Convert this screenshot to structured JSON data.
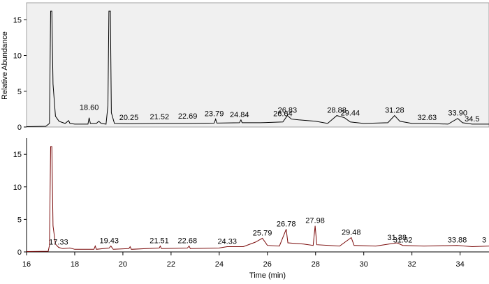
{
  "chart_data": [
    {
      "type": "line",
      "panel": "top",
      "ylabel": "Relative Abundance",
      "xlim": [
        16,
        35.2
      ],
      "ylim": [
        0,
        16.2
      ],
      "yticks": [
        0,
        5,
        10,
        15
      ],
      "background": "#f0f0f0",
      "line_color": "#000000",
      "baseline": [
        [
          16.0,
          0.05
        ],
        [
          16.8,
          0.1
        ],
        [
          16.95,
          0.5
        ],
        [
          17.0,
          16.2
        ],
        [
          17.05,
          16.2
        ],
        [
          17.1,
          6
        ],
        [
          17.2,
          1.5
        ],
        [
          17.35,
          0.8
        ],
        [
          17.6,
          0.5
        ],
        [
          17.75,
          0.9
        ],
        [
          17.8,
          0.5
        ],
        [
          18.0,
          0.4
        ],
        [
          18.55,
          0.4
        ],
        [
          18.6,
          1.3
        ],
        [
          18.65,
          0.5
        ],
        [
          18.9,
          0.5
        ],
        [
          19.0,
          0.8
        ],
        [
          19.1,
          0.5
        ],
        [
          19.3,
          0.4
        ],
        [
          19.38,
          3
        ],
        [
          19.42,
          16.2
        ],
        [
          19.48,
          16.2
        ],
        [
          19.52,
          2
        ],
        [
          19.65,
          0.5
        ],
        [
          20.25,
          0.45
        ],
        [
          21.52,
          0.5
        ],
        [
          22.69,
          0.5
        ],
        [
          23.79,
          0.55
        ],
        [
          23.85,
          1.1
        ],
        [
          23.9,
          0.55
        ],
        [
          24.84,
          0.6
        ],
        [
          24.9,
          1.0
        ],
        [
          24.95,
          0.6
        ],
        [
          25.7,
          0.6
        ],
        [
          26.64,
          0.7
        ],
        [
          26.83,
          1.6
        ],
        [
          27.0,
          1.1
        ],
        [
          27.3,
          1.0
        ],
        [
          28.0,
          0.8
        ],
        [
          28.5,
          0.5
        ],
        [
          28.88,
          1.6
        ],
        [
          29.2,
          1.3
        ],
        [
          29.44,
          0.7
        ],
        [
          30.0,
          0.5
        ],
        [
          31.0,
          0.6
        ],
        [
          31.28,
          1.6
        ],
        [
          31.5,
          0.8
        ],
        [
          32.0,
          0.5
        ],
        [
          32.63,
          0.5
        ],
        [
          33.5,
          0.4
        ],
        [
          33.9,
          1.2
        ],
        [
          34.1,
          0.6
        ],
        [
          34.5,
          0.4
        ],
        [
          35.2,
          0.4
        ]
      ],
      "peak_labels": [
        {
          "x": 18.6,
          "label": "18.60",
          "y": 2.0
        },
        {
          "x": 20.25,
          "label": "20.25",
          "y": 0.6
        },
        {
          "x": 21.52,
          "label": "21.52",
          "y": 0.7
        },
        {
          "x": 22.69,
          "label": "22.69",
          "y": 0.8
        },
        {
          "x": 23.79,
          "label": "23.79",
          "y": 1.1
        },
        {
          "x": 24.84,
          "label": "24.84",
          "y": 1.0
        },
        {
          "x": 26.64,
          "label": "26.64",
          "y": 1.1
        },
        {
          "x": 26.83,
          "label": "26.83",
          "y": 1.6
        },
        {
          "x": 28.88,
          "label": "28.88",
          "y": 1.6
        },
        {
          "x": 29.44,
          "label": "29.44",
          "y": 1.2
        },
        {
          "x": 31.28,
          "label": "31.28",
          "y": 1.6
        },
        {
          "x": 32.63,
          "label": "32.63",
          "y": 0.6
        },
        {
          "x": 33.9,
          "label": "33.90",
          "y": 1.2
        },
        {
          "x": 34.5,
          "label": "34.5",
          "y": 0.4
        }
      ]
    },
    {
      "type": "line",
      "panel": "bottom",
      "xlabel": "Time (min)",
      "xlim": [
        16,
        35.2
      ],
      "ylim": [
        0,
        16.2
      ],
      "xticks": [
        16,
        18,
        20,
        22,
        24,
        26,
        28,
        30,
        32,
        34
      ],
      "yticks": [
        0,
        5,
        10,
        15
      ],
      "background": "#ffffff",
      "line_color": "#7a0a0a",
      "baseline": [
        [
          16.0,
          0.05
        ],
        [
          16.9,
          0.1
        ],
        [
          16.95,
          1.0
        ],
        [
          17.0,
          16.2
        ],
        [
          17.05,
          16.2
        ],
        [
          17.1,
          4
        ],
        [
          17.2,
          1.2
        ],
        [
          17.33,
          0.7
        ],
        [
          17.5,
          0.5
        ],
        [
          17.8,
          0.6
        ],
        [
          18.0,
          0.4
        ],
        [
          18.8,
          0.4
        ],
        [
          18.85,
          0.9
        ],
        [
          18.9,
          0.4
        ],
        [
          19.43,
          0.6
        ],
        [
          19.5,
          0.9
        ],
        [
          19.6,
          0.4
        ],
        [
          20.25,
          0.5
        ],
        [
          20.3,
          0.8
        ],
        [
          20.35,
          0.4
        ],
        [
          21.51,
          0.6
        ],
        [
          21.55,
          0.9
        ],
        [
          21.6,
          0.5
        ],
        [
          22.68,
          0.6
        ],
        [
          22.75,
          0.9
        ],
        [
          22.8,
          0.5
        ],
        [
          24.0,
          0.6
        ],
        [
          24.33,
          0.8
        ],
        [
          25.0,
          0.8
        ],
        [
          25.5,
          1.5
        ],
        [
          25.79,
          2.1
        ],
        [
          26.0,
          1.0
        ],
        [
          26.5,
          0.9
        ],
        [
          26.78,
          3.5
        ],
        [
          26.85,
          1.4
        ],
        [
          27.5,
          1.2
        ],
        [
          27.9,
          1.0
        ],
        [
          27.98,
          4.0
        ],
        [
          28.05,
          1.1
        ],
        [
          29.0,
          0.9
        ],
        [
          29.48,
          2.2
        ],
        [
          29.6,
          1.0
        ],
        [
          30.5,
          0.9
        ],
        [
          31.38,
          1.4
        ],
        [
          31.62,
          1.0
        ],
        [
          32.5,
          0.9
        ],
        [
          33.88,
          1.0
        ],
        [
          34.5,
          0.8
        ],
        [
          35.2,
          0.9
        ]
      ],
      "peak_labels": [
        {
          "x": 17.33,
          "label": "17.33",
          "y": 0.7
        },
        {
          "x": 19.43,
          "label": "19.43",
          "y": 0.9
        },
        {
          "x": 21.51,
          "label": "21.51",
          "y": 0.9
        },
        {
          "x": 22.68,
          "label": "22.68",
          "y": 0.9
        },
        {
          "x": 24.33,
          "label": "24.33",
          "y": 0.8
        },
        {
          "x": 25.79,
          "label": "25.79",
          "y": 2.1
        },
        {
          "x": 26.78,
          "label": "26.78",
          "y": 3.5
        },
        {
          "x": 27.98,
          "label": "27.98",
          "y": 4.0
        },
        {
          "x": 29.48,
          "label": "29.48",
          "y": 2.2
        },
        {
          "x": 31.38,
          "label": "31.38",
          "y": 1.4
        },
        {
          "x": 31.62,
          "label": "31.62",
          "y": 1.0
        },
        {
          "x": 33.88,
          "label": "33.88",
          "y": 1.0
        },
        {
          "x": 35.0,
          "label": "3",
          "y": 1.0
        }
      ]
    }
  ]
}
